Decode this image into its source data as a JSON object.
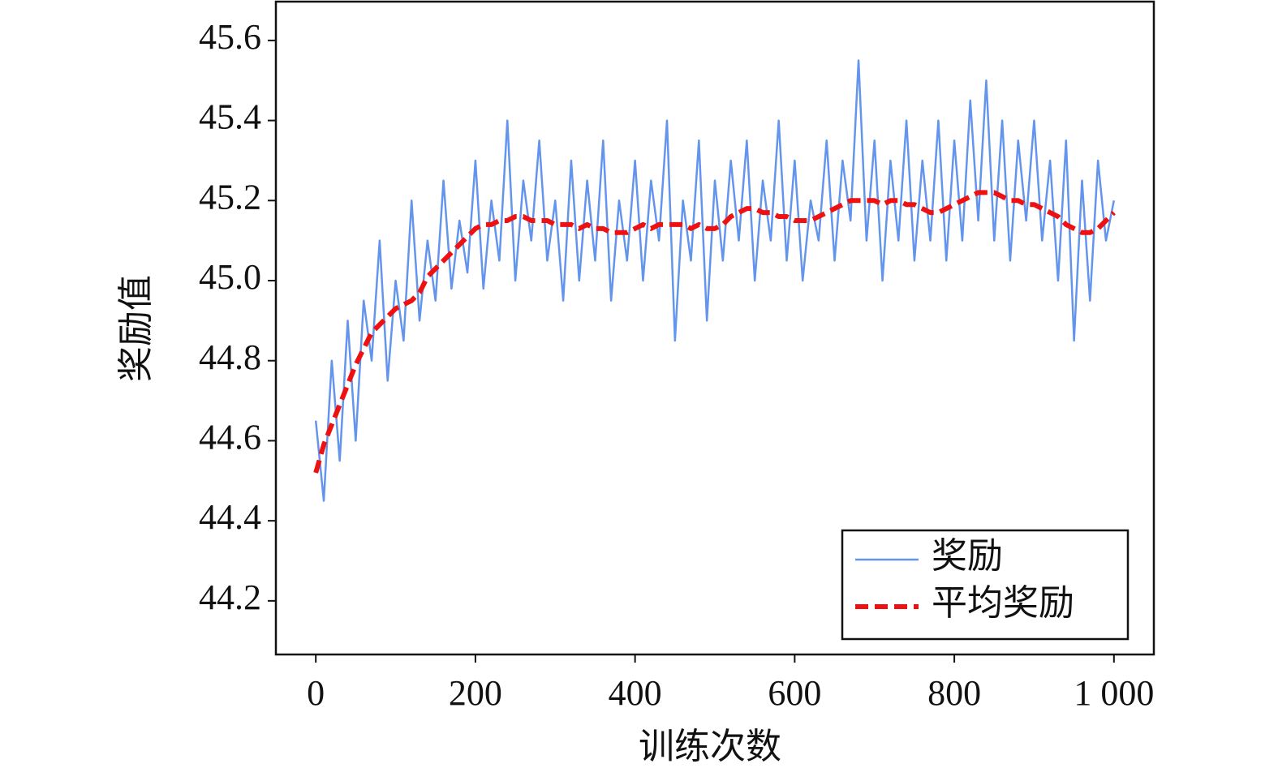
{
  "chart_data": {
    "type": "line",
    "x_label": "训练次数",
    "y_label": "奖励值",
    "x": [
      0,
      10,
      20,
      30,
      40,
      50,
      60,
      70,
      80,
      90,
      100,
      110,
      120,
      130,
      140,
      150,
      160,
      170,
      180,
      190,
      200,
      210,
      220,
      230,
      240,
      250,
      260,
      270,
      280,
      290,
      300,
      310,
      320,
      330,
      340,
      350,
      360,
      370,
      380,
      390,
      400,
      410,
      420,
      430,
      440,
      450,
      460,
      470,
      480,
      490,
      500,
      510,
      520,
      530,
      540,
      550,
      560,
      570,
      580,
      590,
      600,
      610,
      620,
      630,
      640,
      650,
      660,
      670,
      680,
      690,
      700,
      710,
      720,
      730,
      740,
      750,
      760,
      770,
      780,
      790,
      800,
      810,
      820,
      830,
      840,
      850,
      860,
      870,
      880,
      890,
      900,
      910,
      920,
      930,
      940,
      950,
      960,
      970,
      980,
      990,
      1000
    ],
    "series": [
      {
        "name": "奖励",
        "color": "#6495ed",
        "dash": false,
        "values": [
          44.65,
          44.45,
          44.8,
          44.55,
          44.9,
          44.6,
          44.95,
          44.8,
          45.1,
          44.75,
          45.0,
          44.85,
          45.2,
          44.9,
          45.1,
          44.95,
          45.25,
          44.98,
          45.15,
          45.02,
          45.3,
          44.98,
          45.2,
          45.05,
          45.4,
          45.0,
          45.25,
          45.1,
          45.35,
          45.05,
          45.2,
          44.95,
          45.3,
          45.0,
          45.25,
          45.05,
          45.35,
          44.95,
          45.2,
          45.05,
          45.3,
          45.0,
          45.25,
          45.1,
          45.4,
          44.85,
          45.2,
          45.05,
          45.35,
          44.9,
          45.25,
          45.05,
          45.3,
          45.1,
          45.35,
          45.0,
          45.25,
          45.1,
          45.4,
          45.05,
          45.3,
          45.0,
          45.2,
          45.1,
          45.35,
          45.05,
          45.3,
          45.15,
          45.55,
          45.1,
          45.35,
          45.0,
          45.3,
          45.1,
          45.4,
          45.05,
          45.3,
          45.1,
          45.4,
          45.05,
          45.35,
          45.1,
          45.45,
          45.15,
          45.5,
          45.1,
          45.4,
          45.05,
          45.35,
          45.15,
          45.4,
          45.1,
          45.3,
          45.0,
          45.35,
          44.85,
          45.25,
          44.95,
          45.3,
          45.1,
          45.2
        ]
      },
      {
        "name": "平均奖励",
        "color": "#ee1111",
        "dash": true,
        "values": [
          44.52,
          44.59,
          44.64,
          44.69,
          44.74,
          44.79,
          44.83,
          44.87,
          44.89,
          44.91,
          44.93,
          44.94,
          44.95,
          44.97,
          45.01,
          45.03,
          45.05,
          45.07,
          45.09,
          45.11,
          45.13,
          45.14,
          45.14,
          45.15,
          45.15,
          45.16,
          45.16,
          45.15,
          45.15,
          45.15,
          45.14,
          45.14,
          45.14,
          45.13,
          45.14,
          45.13,
          45.13,
          45.12,
          45.12,
          45.12,
          45.13,
          45.14,
          45.13,
          45.14,
          45.14,
          45.14,
          45.14,
          45.13,
          45.14,
          45.13,
          45.13,
          45.14,
          45.16,
          45.17,
          45.18,
          45.18,
          45.17,
          45.17,
          45.16,
          45.16,
          45.15,
          45.15,
          45.15,
          45.16,
          45.17,
          45.18,
          45.19,
          45.2,
          45.2,
          45.2,
          45.2,
          45.19,
          45.2,
          45.2,
          45.19,
          45.19,
          45.18,
          45.17,
          45.17,
          45.18,
          45.19,
          45.2,
          45.21,
          45.22,
          45.22,
          45.22,
          45.21,
          45.2,
          45.2,
          45.19,
          45.19,
          45.18,
          45.17,
          45.16,
          45.14,
          45.13,
          45.12,
          45.12,
          45.13,
          45.15,
          45.17
        ]
      }
    ],
    "xlim": [
      -50,
      1050
    ],
    "ylim": [
      44.066,
      45.697
    ],
    "xticks": [
      0,
      200,
      400,
      600,
      800,
      {
        "value": 1000,
        "label": "1 000"
      }
    ],
    "yticks": [
      {
        "value": 44.2,
        "label": "44.2"
      },
      {
        "value": 44.4,
        "label": "44.4"
      },
      {
        "value": 44.6,
        "label": "44.6"
      },
      {
        "value": 44.8,
        "label": "44.8"
      },
      {
        "value": 45.0,
        "label": "45.0"
      },
      {
        "value": 45.2,
        "label": "45.2"
      },
      {
        "value": 45.4,
        "label": "45.4"
      },
      {
        "value": 45.6,
        "label": "45.6"
      }
    ],
    "legend": "lower right",
    "grid": false
  }
}
